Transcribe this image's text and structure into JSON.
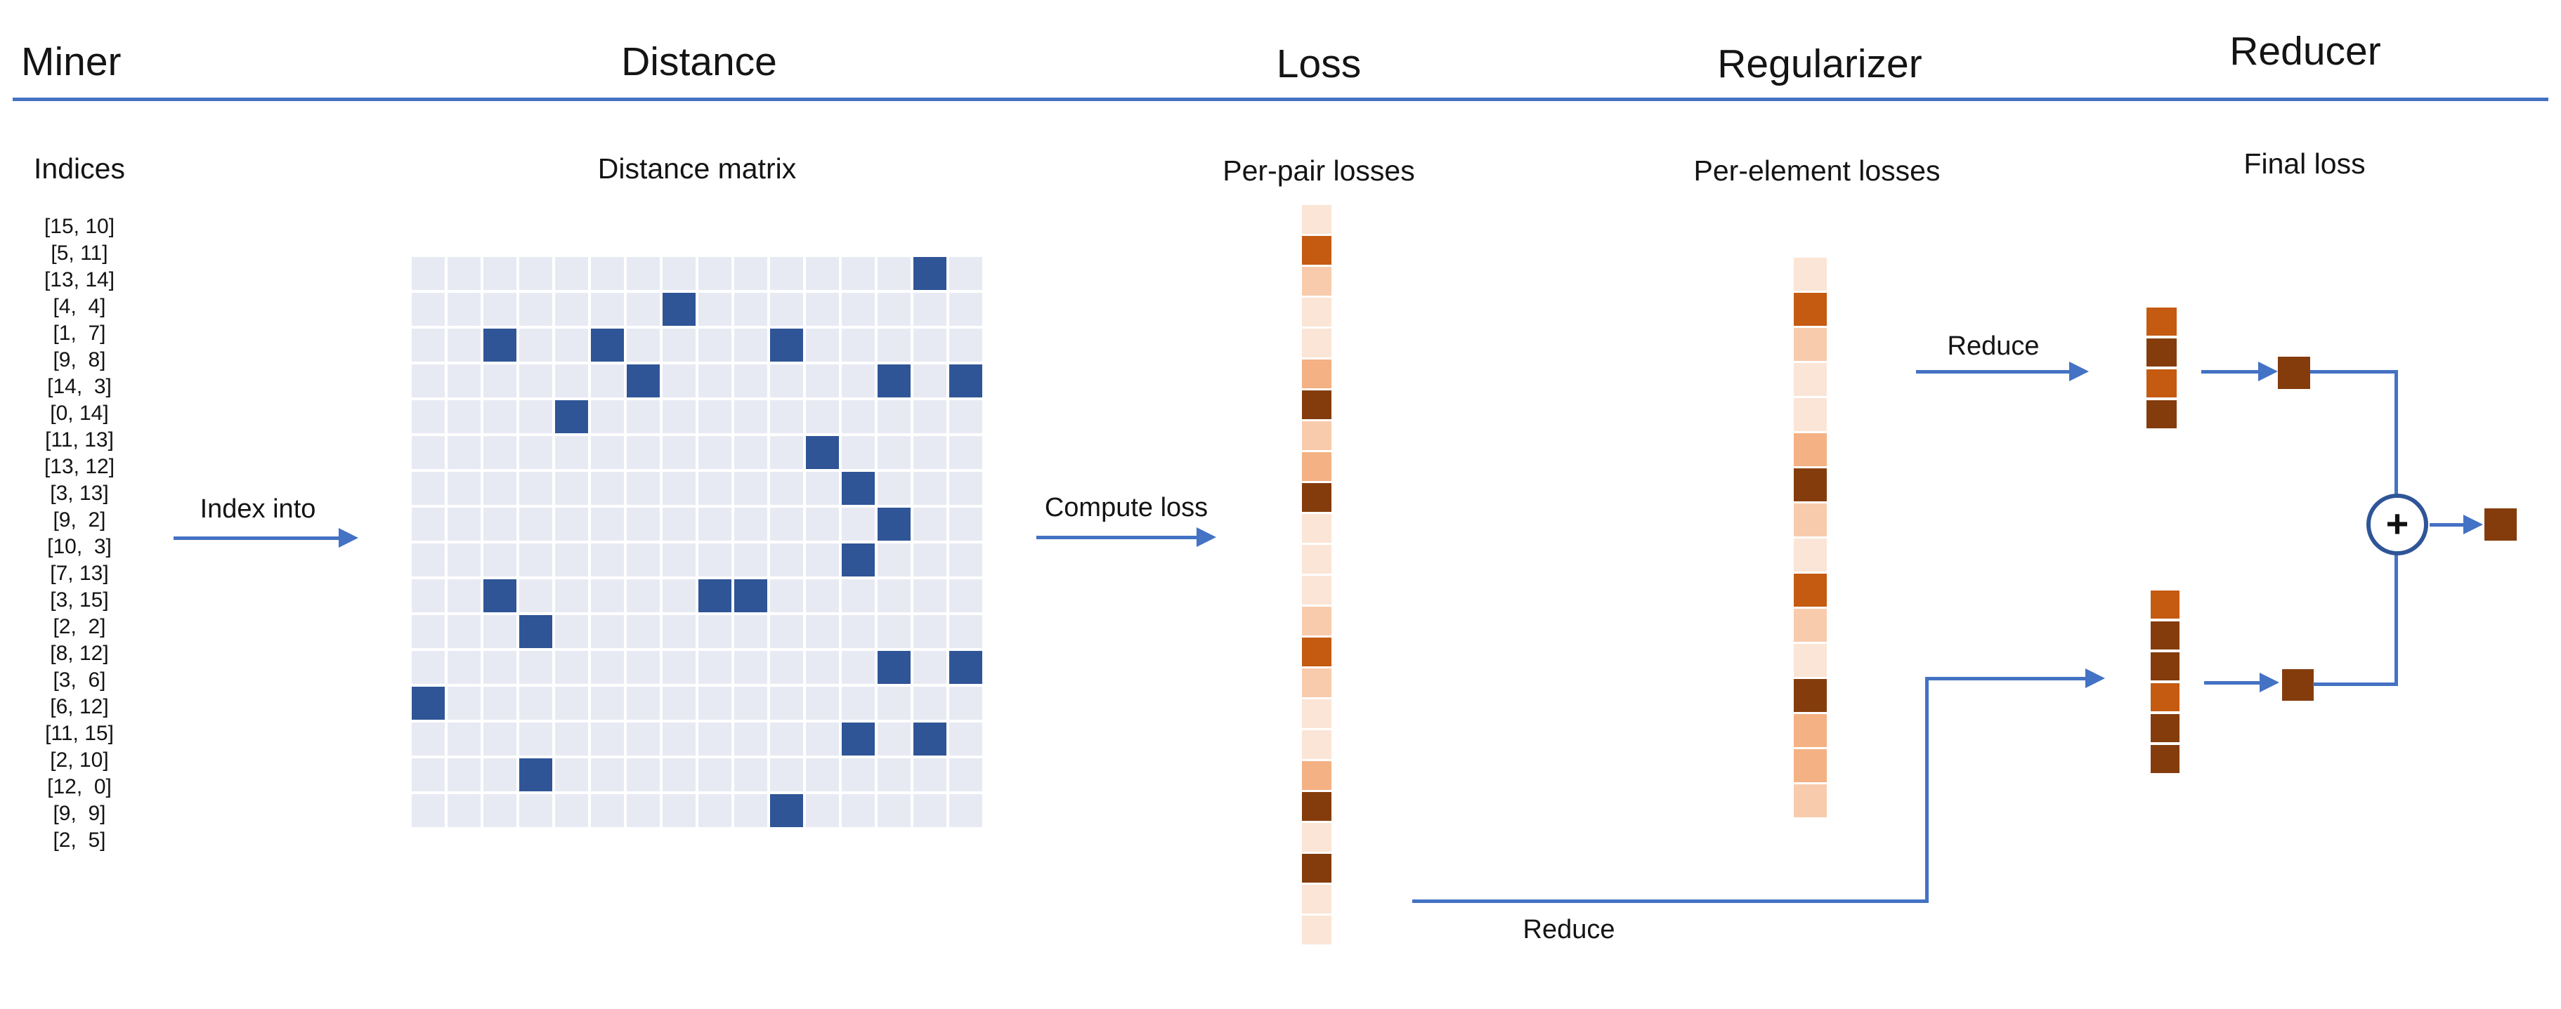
{
  "palette": {
    "arrow_blue": "#4472C4",
    "divider_blue": "#4472C4",
    "circle_border_blue": "#2F5597",
    "matrix_dark_blue": "#2F5597",
    "matrix_light": "#E8EAF3",
    "orange_lightest": "#FBE5D6",
    "orange_light": "#F8CBAD",
    "orange_medium": "#F4B183",
    "orange_dark": "#C55A11",
    "brown_dark": "#843C0C",
    "ink": "#141414"
  },
  "headers": {
    "miner": "Miner",
    "distance": "Distance",
    "loss": "Loss",
    "regularizer": "Regularizer",
    "reducer": "Reducer"
  },
  "sublabels": {
    "indices": "Indices",
    "distance_matrix": "Distance matrix",
    "per_pair_losses": "Per-pair losses",
    "per_element_losses": "Per-element losses",
    "final_loss": "Final loss"
  },
  "arrow_labels": {
    "index_into": "Index into",
    "compute_loss": "Compute loss",
    "reduce_top": "Reduce",
    "reduce_bottom": "Reduce"
  },
  "miner": {
    "indices": [
      "[15, 10]",
      "[5, 11]",
      "[13, 14]",
      "[4,  4]",
      "[1,  7]",
      "[9,  8]",
      "[14,  3]",
      "[0, 14]",
      "[11, 13]",
      "[13, 12]",
      "[3, 13]",
      "[9,  2]",
      "[10,  3]",
      "[7, 13]",
      "[3, 15]",
      "[2,  2]",
      "[8, 12]",
      "[3,  6]",
      "[6, 12]",
      "[11, 15]",
      "[2, 10]",
      "[12,  0]",
      "[9,  9]",
      "[2,  5]"
    ]
  },
  "distance": {
    "matrix_rows": 16,
    "matrix_cols": 16,
    "dark_cells": [
      [
        15,
        10
      ],
      [
        5,
        11
      ],
      [
        13,
        14
      ],
      [
        4,
        4
      ],
      [
        1,
        7
      ],
      [
        9,
        8
      ],
      [
        14,
        3
      ],
      [
        0,
        14
      ],
      [
        11,
        13
      ],
      [
        13,
        12
      ],
      [
        3,
        13
      ],
      [
        9,
        2
      ],
      [
        10,
        3
      ],
      [
        7,
        13
      ],
      [
        3,
        15
      ],
      [
        2,
        2
      ],
      [
        8,
        12
      ],
      [
        3,
        6
      ],
      [
        6,
        12
      ],
      [
        11,
        15
      ],
      [
        2,
        10
      ],
      [
        12,
        0
      ],
      [
        9,
        9
      ],
      [
        2,
        5
      ]
    ]
  },
  "loss": {
    "per_pair_colors": [
      "#FBE5D6",
      "#C55A11",
      "#F8CBAD",
      "#FBE5D6",
      "#FBE5D6",
      "#F4B183",
      "#843C0C",
      "#F8CBAD",
      "#F4B183",
      "#843C0C",
      "#FBE5D6",
      "#FBE5D6",
      "#FBE5D6",
      "#F8CBAD",
      "#C55A11",
      "#F8CBAD",
      "#FBE5D6",
      "#FBE5D6",
      "#F4B183",
      "#843C0C",
      "#FBE5D6",
      "#843C0C",
      "#FBE5D6",
      "#FBE5D6"
    ]
  },
  "regularizer": {
    "per_element_colors": [
      "#FBE5D6",
      "#C55A11",
      "#F8CBAD",
      "#FBE5D6",
      "#FBE5D6",
      "#F4B183",
      "#843C0C",
      "#F8CBAD",
      "#FBE5D6",
      "#C55A11",
      "#F8CBAD",
      "#FBE5D6",
      "#843C0C",
      "#F4B183",
      "#F4B183",
      "#F8CBAD"
    ]
  },
  "reducer": {
    "top_column_colors": [
      "#C55A11",
      "#843C0C",
      "#C55A11",
      "#843C0C"
    ],
    "bottom_column_colors": [
      "#C55A11",
      "#843C0C",
      "#843C0C",
      "#C55A11",
      "#843C0C",
      "#843C0C"
    ],
    "top_square_color": "#843C0C",
    "bottom_square_color": "#843C0C",
    "final_square_color": "#843C0C",
    "plus_symbol": "+"
  }
}
